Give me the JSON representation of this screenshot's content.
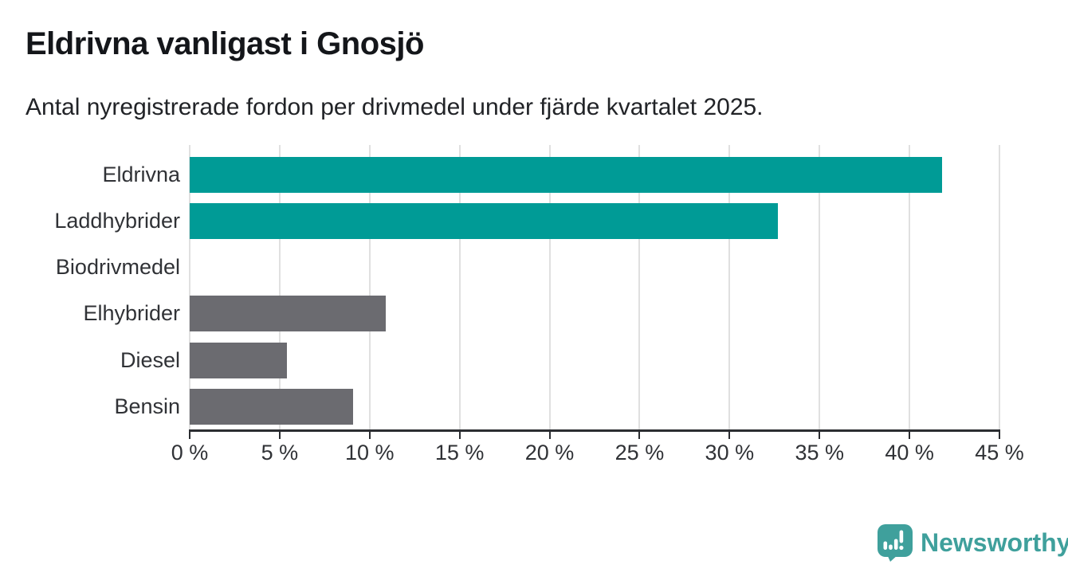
{
  "title": "Eldrivna vanligast i Gnosjö",
  "subtitle": "Antal nyregistrerade fordon per drivmedel under fjärde kvartalet 2025.",
  "chart_data": {
    "type": "bar",
    "orientation": "horizontal",
    "title": "Eldrivna vanligast i Gnosjö",
    "subtitle": "Antal nyregistrerade fordon per drivmedel under fjärde kvartalet 2025.",
    "categories": [
      "Eldrivna",
      "Laddhybrider",
      "Biodrivmedel",
      "Elhybrider",
      "Diesel",
      "Bensin"
    ],
    "values": [
      41.8,
      32.7,
      0,
      10.9,
      5.4,
      9.1
    ],
    "unit": "%",
    "xlim": [
      0,
      45
    ],
    "x_ticks": [
      0,
      5,
      10,
      15,
      20,
      25,
      30,
      35,
      40,
      45
    ],
    "x_tick_labels": [
      "0 %",
      "5 %",
      "10 %",
      "15 %",
      "20 %",
      "25 %",
      "30 %",
      "35 %",
      "40 %",
      "45 %"
    ],
    "bar_colors": [
      "#009b96",
      "#009b96",
      "#6b6b70",
      "#6b6b70",
      "#6b6b70",
      "#6b6b70"
    ],
    "grid": true,
    "legend": false
  },
  "colors": {
    "highlight": "#009b96",
    "neutral": "#6b6b70",
    "gridline": "#e0e0e0",
    "axis": "#2b2d31",
    "text": "#14161a",
    "logo": "#3fa09c"
  },
  "branding": {
    "logo_text": "Newsworthy",
    "logo_icon": "newsworthy-speech-bubble-chart-icon"
  }
}
